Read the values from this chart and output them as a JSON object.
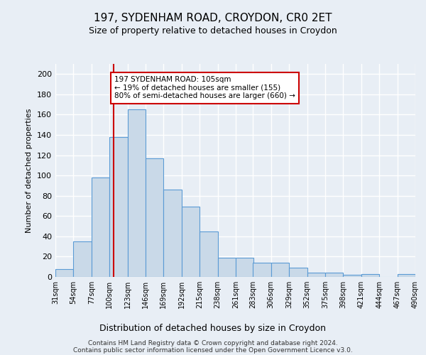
{
  "title1": "197, SYDENHAM ROAD, CROYDON, CR0 2ET",
  "title2": "Size of property relative to detached houses in Croydon",
  "xlabel": "Distribution of detached houses by size in Croydon",
  "ylabel": "Number of detached properties",
  "bins": [
    31,
    54,
    77,
    100,
    123,
    146,
    169,
    192,
    215,
    238,
    261,
    283,
    306,
    329,
    352,
    375,
    398,
    421,
    444,
    467,
    490
  ],
  "counts": [
    8,
    35,
    98,
    138,
    165,
    117,
    86,
    69,
    45,
    19,
    19,
    14,
    14,
    9,
    4,
    4,
    2,
    3,
    0,
    3
  ],
  "bar_facecolor": "#c9d9e8",
  "bar_edgecolor": "#5b9bd5",
  "vline_x": 105,
  "vline_color": "#cc0000",
  "annotation_text": "197 SYDENHAM ROAD: 105sqm\n← 19% of detached houses are smaller (155)\n80% of semi-detached houses are larger (660) →",
  "annotation_box_color": "#ffffff",
  "annotation_box_edgecolor": "#cc0000",
  "ylim": [
    0,
    210
  ],
  "yticks": [
    0,
    20,
    40,
    60,
    80,
    100,
    120,
    140,
    160,
    180,
    200
  ],
  "tick_labels": [
    "31sqm",
    "54sqm",
    "77sqm",
    "100sqm",
    "123sqm",
    "146sqm",
    "169sqm",
    "192sqm",
    "215sqm",
    "238sqm",
    "261sqm",
    "283sqm",
    "306sqm",
    "329sqm",
    "352sqm",
    "375sqm",
    "398sqm",
    "421sqm",
    "444sqm",
    "467sqm",
    "490sqm"
  ],
  "footer1": "Contains HM Land Registry data © Crown copyright and database right 2024.",
  "footer2": "Contains public sector information licensed under the Open Government Licence v3.0.",
  "bg_color": "#e8eef5",
  "plot_bg_color": "#e8eef5"
}
